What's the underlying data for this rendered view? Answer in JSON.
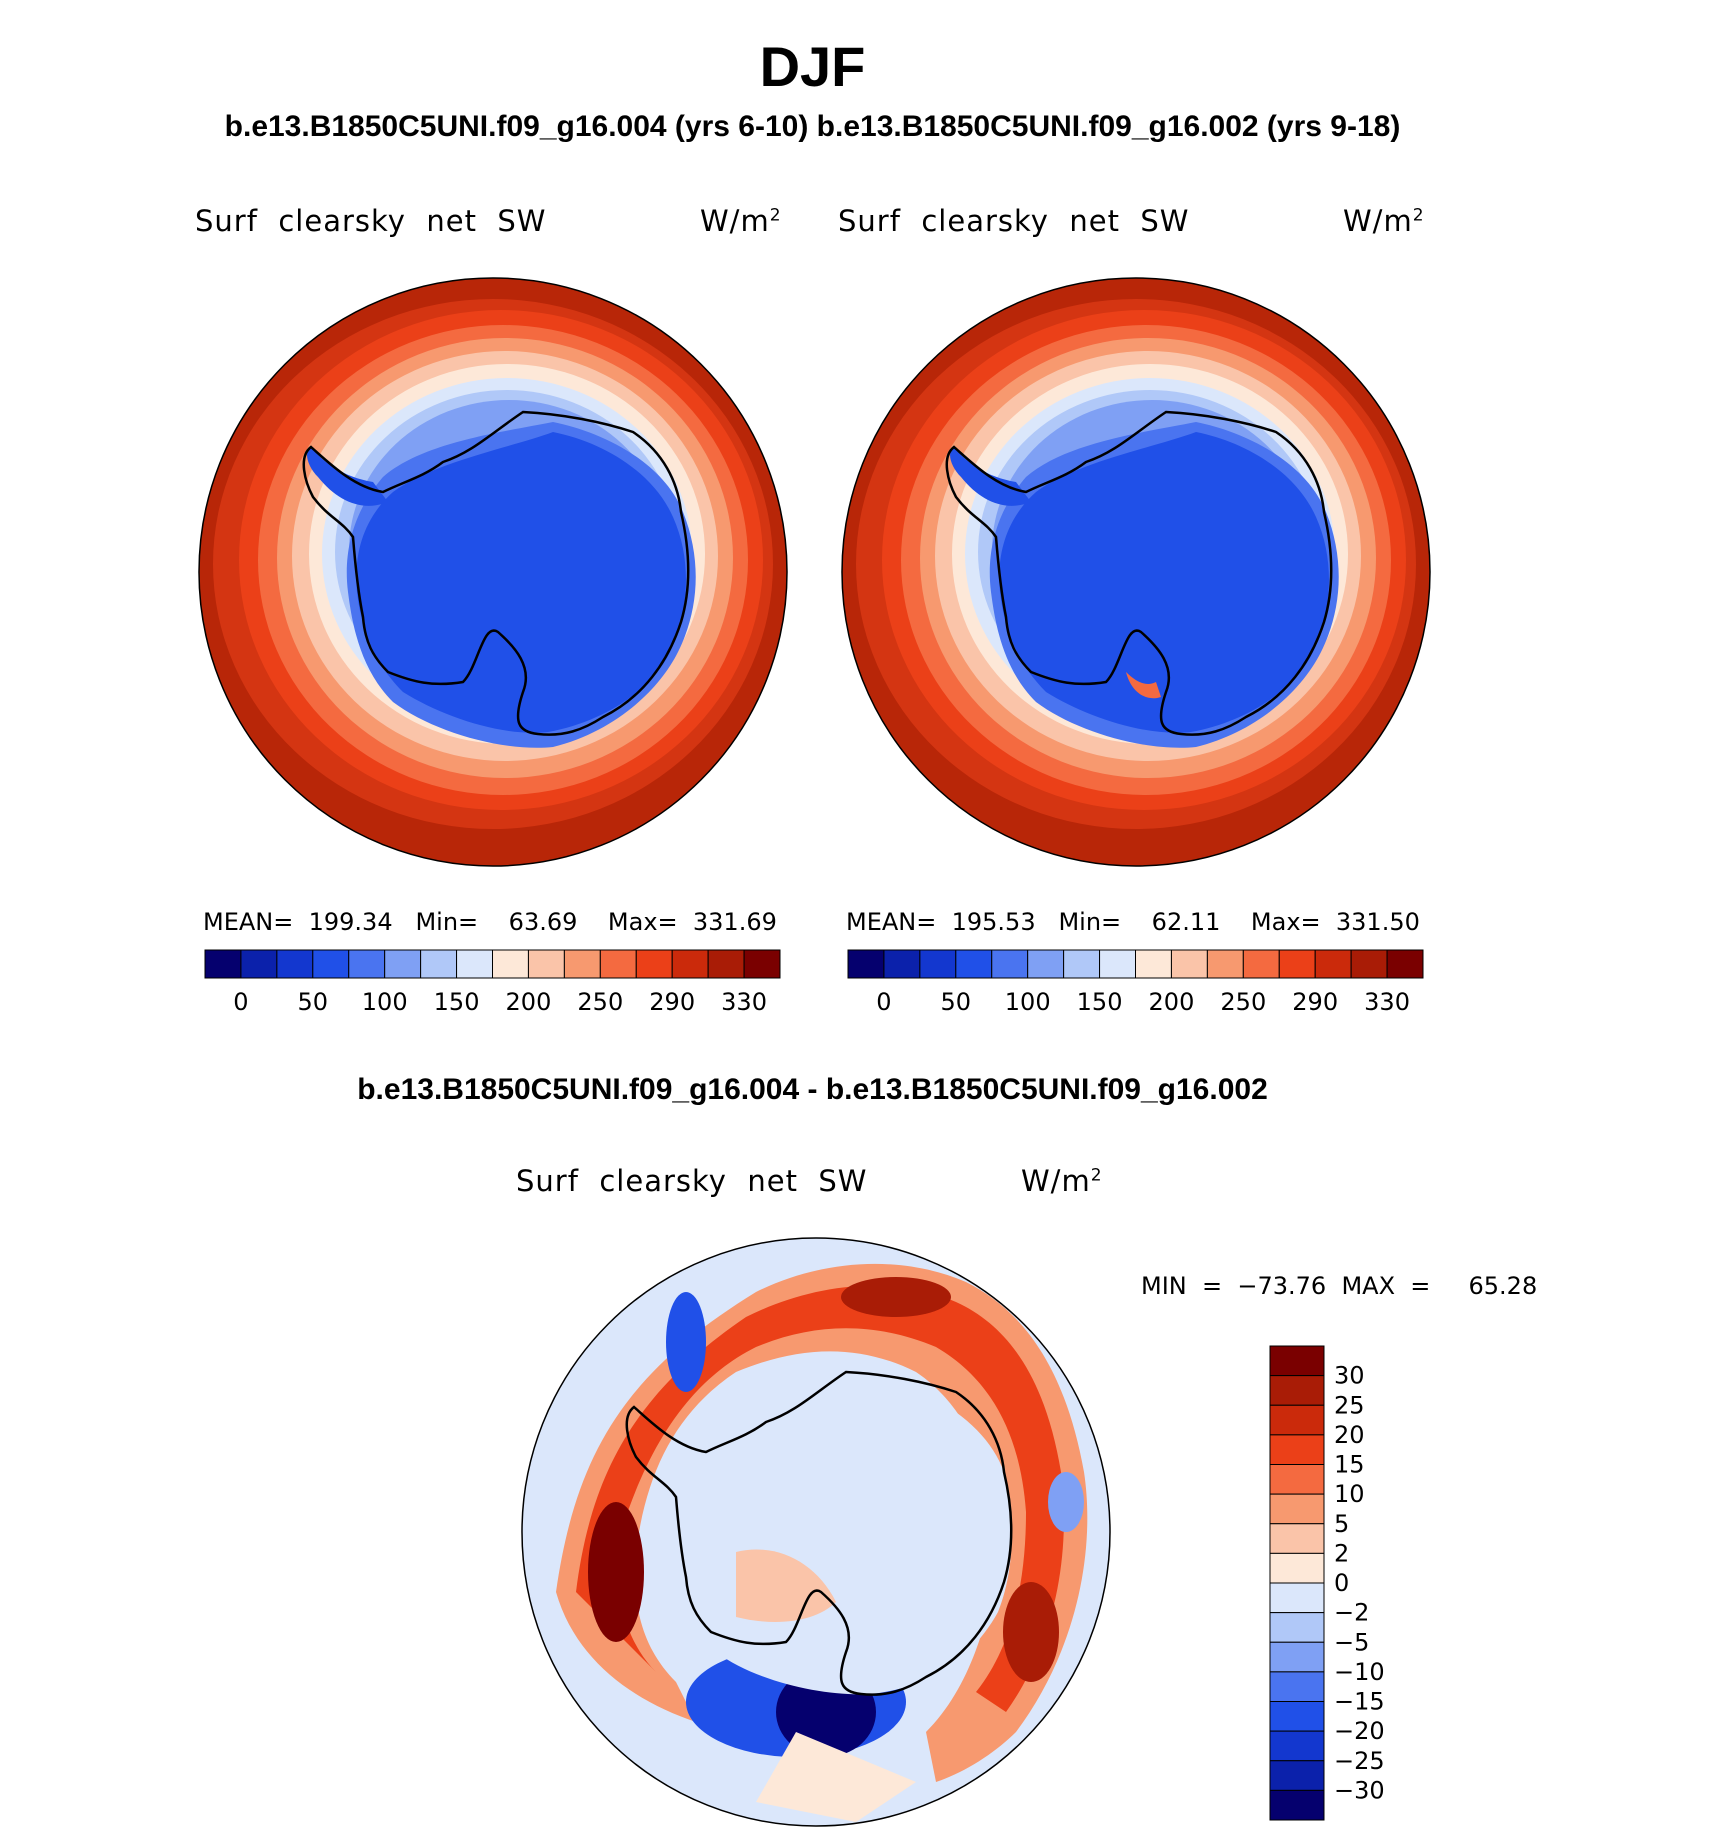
{
  "header": {
    "title": "DJF",
    "subtitle": "b.e13.B1850C5UNI.f09_g16.004 (yrs 6-10) b.e13.B1850C5UNI.f09_g16.002 (yrs 9-18)"
  },
  "panels": [
    {
      "variable": "Surf  clearsky  net  SW",
      "units_base": "W/m",
      "units_exp": "2",
      "stats": "MEAN=  199.34   Min=    63.69    Max=  331.69"
    },
    {
      "variable": "Surf  clearsky  net  SW",
      "units_base": "W/m",
      "units_exp": "2",
      "stats": "MEAN=  195.53   Min=    62.11    Max=  331.50"
    }
  ],
  "shared_colorbar": {
    "labels": [
      "0",
      "50",
      "100",
      "150",
      "200",
      "250",
      "290",
      "330"
    ],
    "colors": [
      "#05006e",
      "#0b21ab",
      "#1337cf",
      "#2050e8",
      "#4a74f0",
      "#7fa0f4",
      "#b0c8f8",
      "#dbe7fb",
      "#fde8d8",
      "#fac4a9",
      "#f7996f",
      "#f46a40",
      "#eb4018",
      "#cb2a0b",
      "#a91c06",
      "#7a0000"
    ]
  },
  "difference": {
    "title": "b.e13.B1850C5UNI.f09_g16.004 - b.e13.B1850C5UNI.f09_g16.002",
    "variable": "Surf  clearsky  net  SW",
    "units_base": "W/m",
    "units_exp": "2",
    "minmax": "MIN  =  −73.76  MAX  =     65.28",
    "colorbar_labels": [
      "30",
      "25",
      "20",
      "15",
      "10",
      "5",
      "2",
      "0",
      "−2",
      "−5",
      "−10",
      "−15",
      "−20",
      "−25",
      "−30"
    ],
    "colorbar_colors": [
      "#7a0000",
      "#a91c06",
      "#cb2a0b",
      "#eb4018",
      "#f46a40",
      "#f7996f",
      "#fac4a9",
      "#fde8d8",
      "#dbe7fb",
      "#b0c8f8",
      "#7fa0f4",
      "#4a74f0",
      "#2050e8",
      "#1337cf",
      "#0b21ab",
      "#05006e"
    ]
  }
}
